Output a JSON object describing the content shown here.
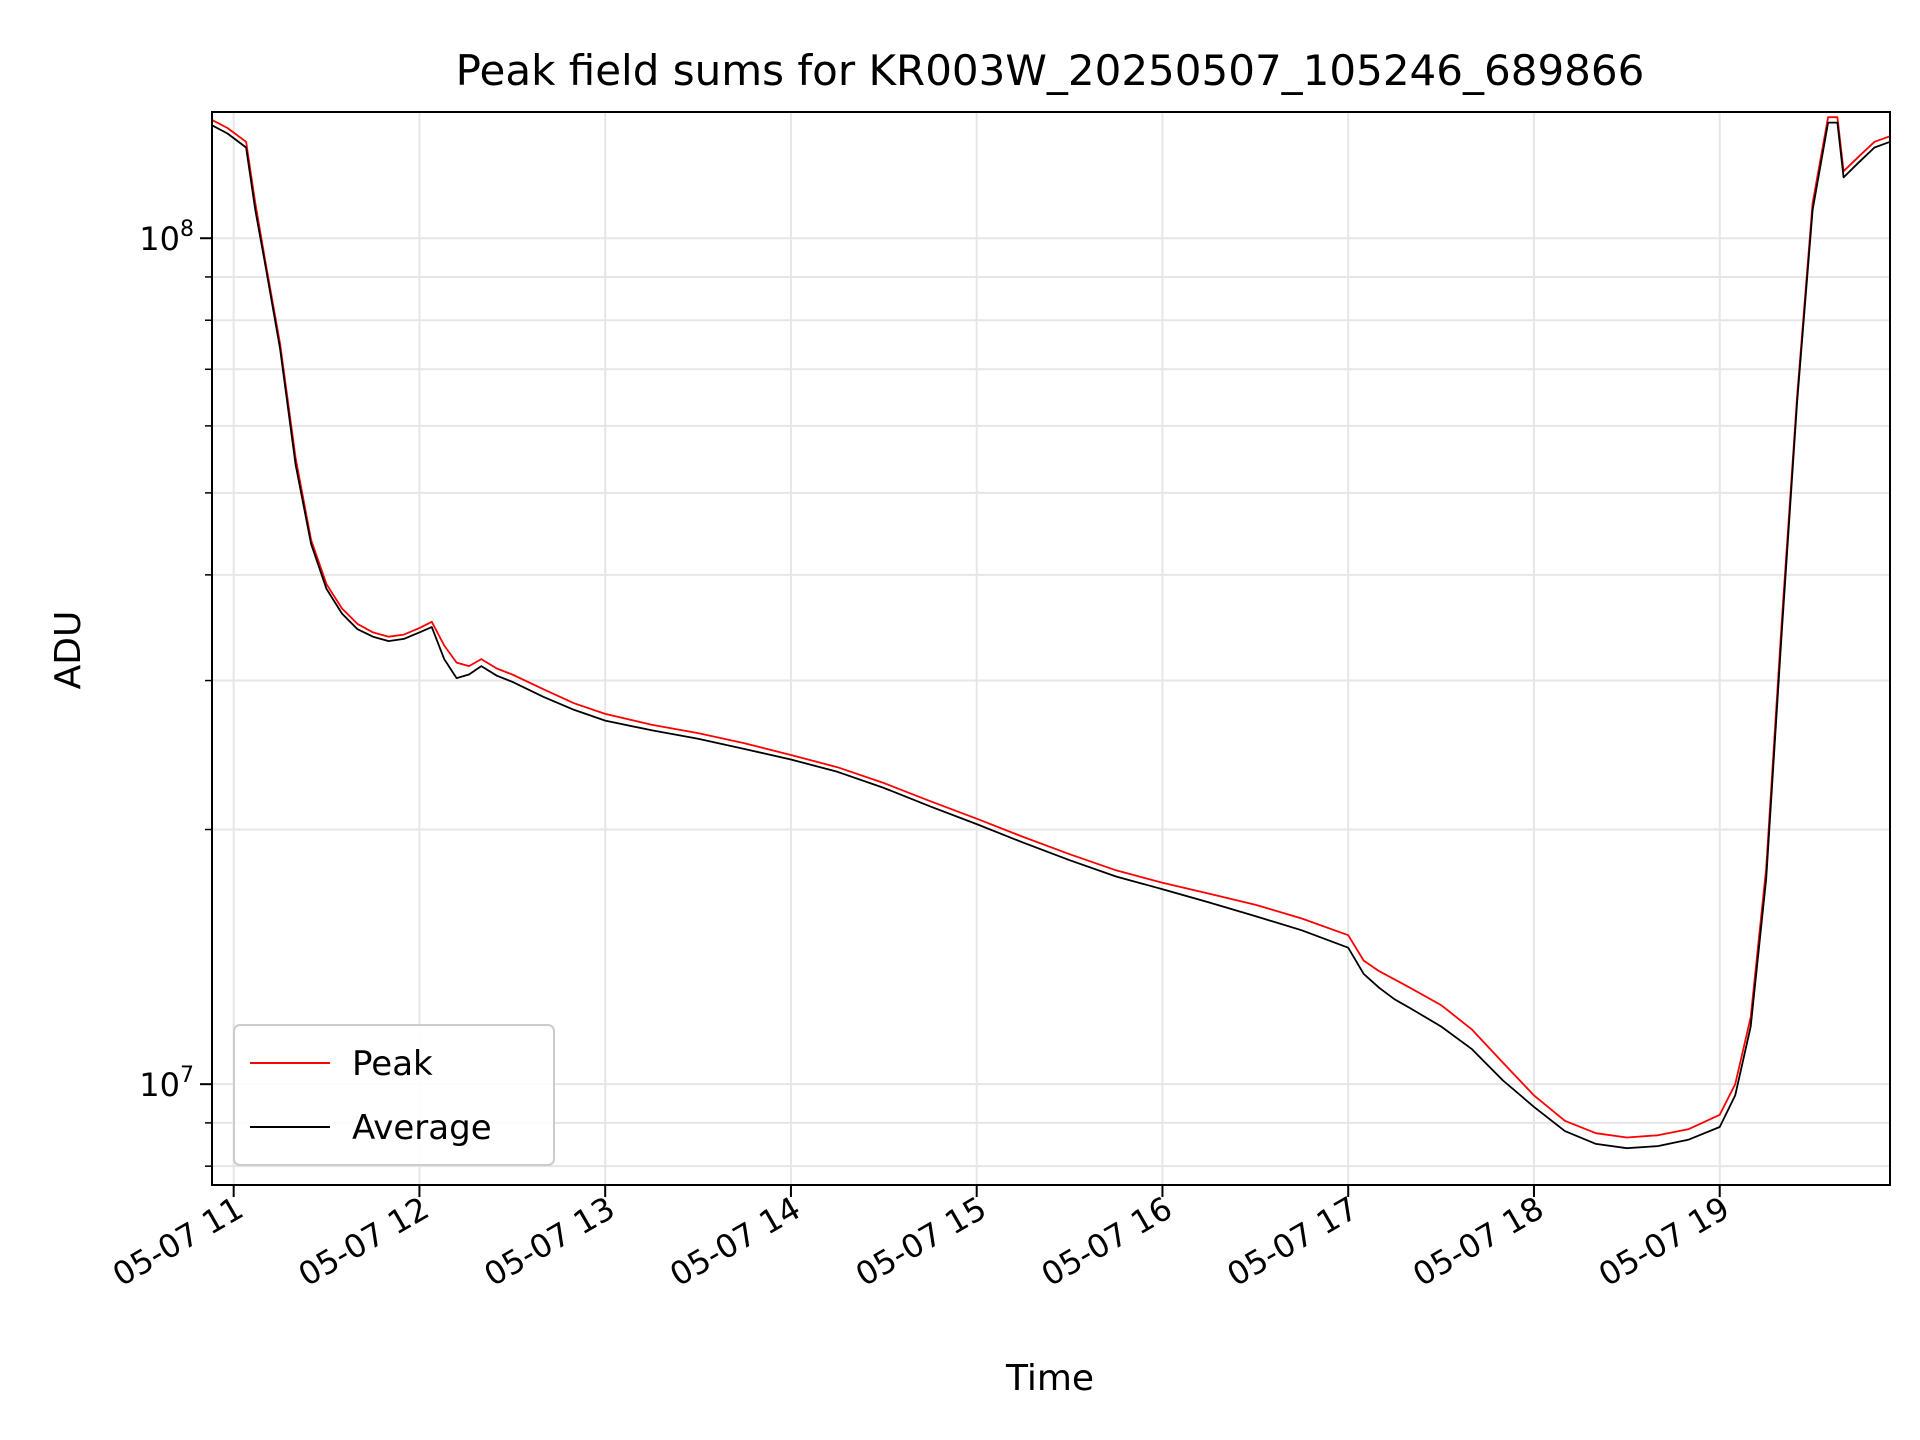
{
  "chart_data": {
    "type": "line",
    "title": "Peak field sums for KR003W_20250507_105246_689866",
    "xlabel": "Time",
    "ylabel": "ADU",
    "yscale": "log",
    "grid": true,
    "legend_position": "lower-left",
    "xlim": [
      "2025-05-07T10:53",
      "2025-05-07T19:55"
    ],
    "ylim": [
      7600000,
      141000000
    ],
    "x_ticks": [
      "05-07 11",
      "05-07 12",
      "05-07 13",
      "05-07 14",
      "05-07 15",
      "05-07 16",
      "05-07 17",
      "05-07 18",
      "05-07 19"
    ],
    "y_major_ticks": [
      {
        "value": 10000000,
        "base": "10",
        "exp": "7"
      },
      {
        "value": 100000000,
        "base": "10",
        "exp": "8"
      }
    ],
    "series": [
      {
        "name": "Peak",
        "color": "#ff0000",
        "x": [
          "10:53",
          "10:58",
          "11:04",
          "11:07",
          "11:10",
          "11:15",
          "11:20",
          "11:25",
          "11:30",
          "11:35",
          "11:40",
          "11:45",
          "11:50",
          "11:55",
          "12:00",
          "12:04",
          "12:08",
          "12:12",
          "12:16",
          "12:20",
          "12:25",
          "12:30",
          "12:40",
          "12:50",
          "13:00",
          "13:15",
          "13:30",
          "13:45",
          "14:00",
          "14:15",
          "14:30",
          "14:45",
          "15:00",
          "15:15",
          "15:30",
          "15:45",
          "16:00",
          "16:15",
          "16:30",
          "16:45",
          "17:00",
          "17:05",
          "17:10",
          "17:15",
          "17:20",
          "17:30",
          "17:40",
          "17:50",
          "18:00",
          "18:10",
          "18:20",
          "18:30",
          "18:40",
          "18:50",
          "19:00",
          "19:05",
          "19:10",
          "19:15",
          "19:20",
          "19:25",
          "19:30",
          "19:35",
          "19:37",
          "19:38",
          "19:40",
          "19:45",
          "19:50",
          "19:55"
        ],
        "y": [
          138000000,
          135000000,
          130000000,
          110000000,
          95000000,
          75000000,
          55000000,
          44000000,
          39000000,
          36500000,
          35000000,
          34200000,
          33800000,
          34000000,
          34600000,
          35200000,
          33000000,
          31500000,
          31200000,
          31800000,
          31000000,
          30500000,
          29300000,
          28200000,
          27400000,
          26600000,
          26000000,
          25300000,
          24500000,
          23700000,
          22700000,
          21600000,
          20600000,
          19600000,
          18700000,
          17900000,
          17300000,
          16800000,
          16300000,
          15700000,
          15000000,
          14000000,
          13600000,
          13300000,
          13000000,
          12400000,
          11600000,
          10600000,
          9700000,
          9050000,
          8750000,
          8650000,
          8700000,
          8850000,
          9200000,
          10000000,
          12000000,
          18000000,
          35000000,
          65000000,
          110000000,
          139000000,
          139000000,
          139000000,
          120000000,
          125000000,
          130000000,
          132000000
        ]
      },
      {
        "name": "Average",
        "color": "#000000",
        "x": [
          "10:53",
          "10:58",
          "11:04",
          "11:07",
          "11:10",
          "11:15",
          "11:20",
          "11:25",
          "11:30",
          "11:35",
          "11:40",
          "11:45",
          "11:50",
          "11:55",
          "12:00",
          "12:04",
          "12:08",
          "12:12",
          "12:16",
          "12:20",
          "12:25",
          "12:30",
          "12:40",
          "12:50",
          "13:00",
          "13:15",
          "13:30",
          "13:45",
          "14:00",
          "14:15",
          "14:30",
          "14:45",
          "15:00",
          "15:15",
          "15:30",
          "15:45",
          "16:00",
          "16:15",
          "16:30",
          "16:45",
          "17:00",
          "17:05",
          "17:10",
          "17:15",
          "17:20",
          "17:30",
          "17:40",
          "17:50",
          "18:00",
          "18:10",
          "18:20",
          "18:30",
          "18:40",
          "18:50",
          "19:00",
          "19:05",
          "19:10",
          "19:15",
          "19:20",
          "19:25",
          "19:30",
          "19:35",
          "19:37",
          "19:38",
          "19:40",
          "19:45",
          "19:50",
          "19:55"
        ],
        "y": [
          136000000,
          133000000,
          128000000,
          108000000,
          94000000,
          74000000,
          54000000,
          43500000,
          38500000,
          36000000,
          34500000,
          33800000,
          33400000,
          33600000,
          34200000,
          34700000,
          31800000,
          30200000,
          30500000,
          31200000,
          30400000,
          29900000,
          28700000,
          27700000,
          26900000,
          26200000,
          25600000,
          24900000,
          24200000,
          23400000,
          22400000,
          21300000,
          20300000,
          19300000,
          18400000,
          17600000,
          17000000,
          16400000,
          15800000,
          15200000,
          14500000,
          13500000,
          13000000,
          12600000,
          12300000,
          11700000,
          11000000,
          10100000,
          9400000,
          8800000,
          8500000,
          8400000,
          8450000,
          8600000,
          8900000,
          9700000,
          11700000,
          17500000,
          34000000,
          64000000,
          108000000,
          137000000,
          137000000,
          137000000,
          118000000,
          123000000,
          128000000,
          130000000
        ]
      }
    ]
  }
}
